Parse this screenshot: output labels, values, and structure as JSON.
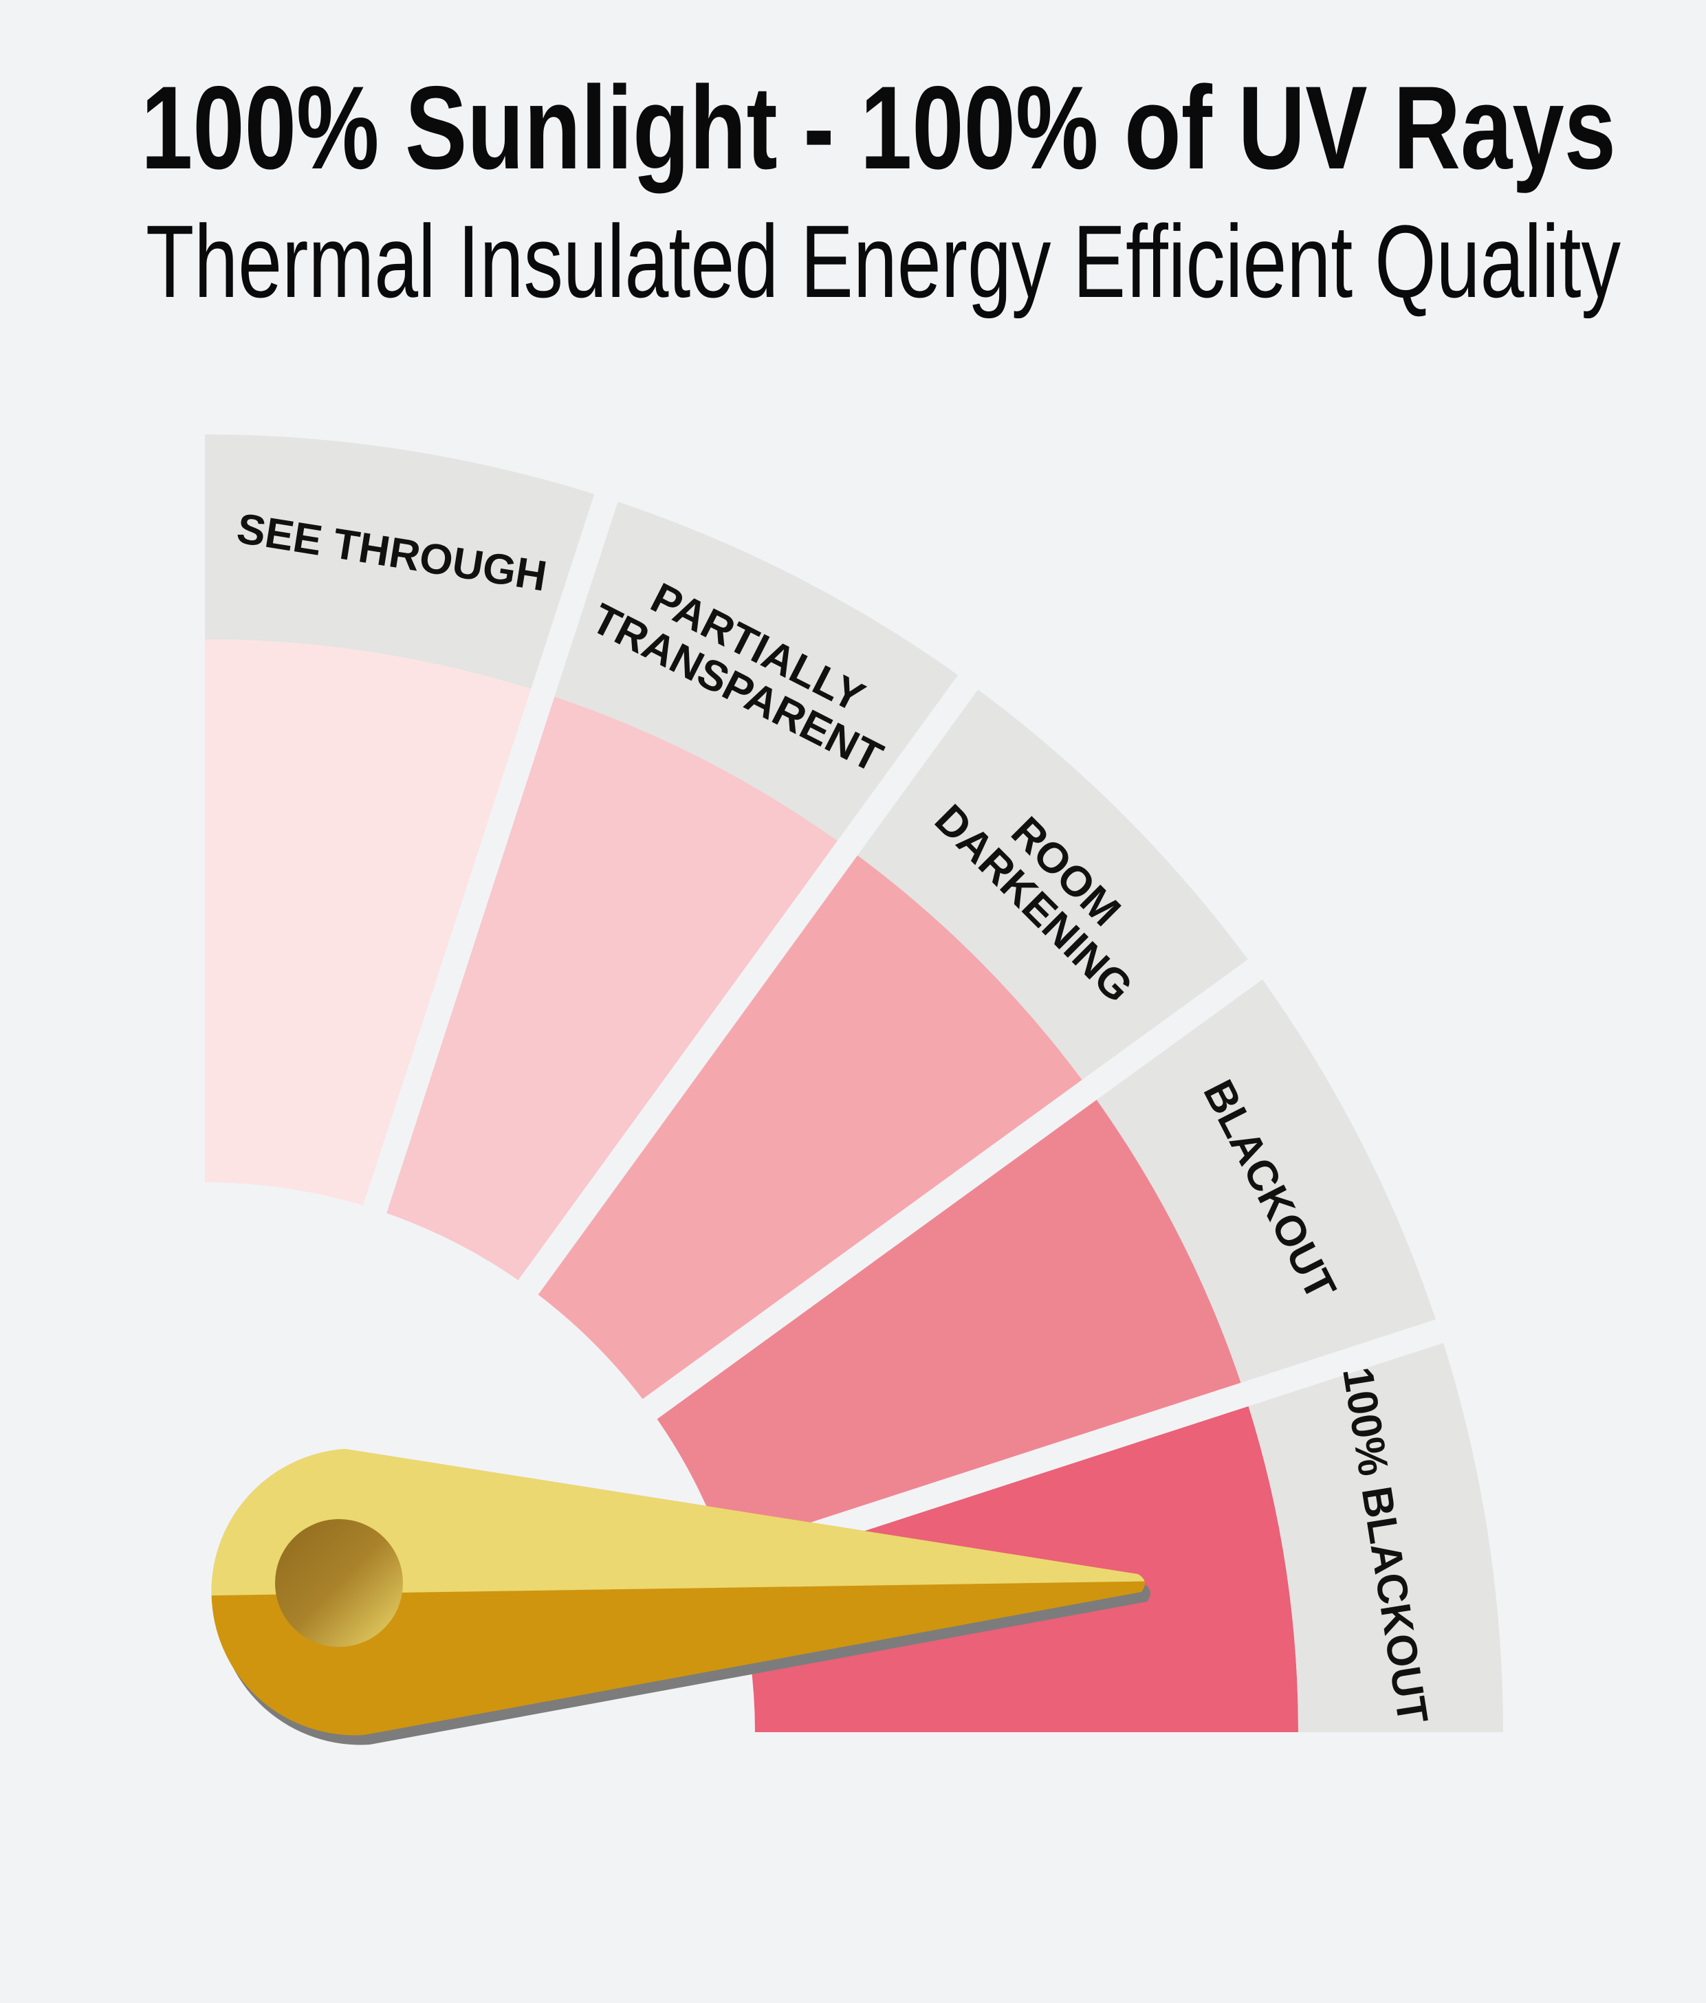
{
  "header": {
    "title": "100% Sunlight - 100% of UV Rays",
    "subtitle": "Thermal Insulated Energy Efficient Quality"
  },
  "gauge": {
    "label_band_color": "#e4e4e2",
    "background_color": "#f2f3f5",
    "segments": [
      {
        "lines": [
          "SEE THROUGH"
        ],
        "color": "#fce4e5"
      },
      {
        "lines": [
          "PARTIALLY",
          "TRANSPARENT"
        ],
        "color": "#f8c8cc"
      },
      {
        "lines": [
          "ROOM",
          "DARKENING"
        ],
        "color": "#f4a8ae"
      },
      {
        "lines": [
          "BLACKOUT"
        ],
        "color": "#ee8692"
      },
      {
        "lines": [
          "100% BLACKOUT"
        ],
        "color": "#ea6178"
      }
    ],
    "pointer": {
      "selected_segment": "100% BLACKOUT",
      "light_color": "#ecd870",
      "dark_color": "#cf950f",
      "shadow_color": "#7c7c7c"
    }
  }
}
